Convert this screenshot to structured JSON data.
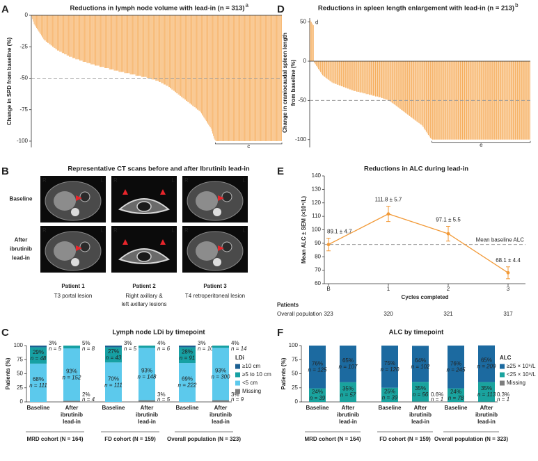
{
  "chart_data": [
    {
      "panel": "A",
      "type": "waterfall",
      "title": "Reductions in lymph node volume with lead-in (n = 313)",
      "title_note": "a",
      "y_label": "Change in SPD from baseline (%)",
      "ylim": [
        -105,
        0
      ],
      "yticks": [
        -100,
        -75,
        -50,
        -25,
        0
      ],
      "ref_line": -50,
      "bracket_label": "c",
      "color": "#f6ad5c",
      "values": [
        -1,
        -3,
        -5,
        -7,
        -8,
        -9,
        -10,
        -11,
        -12,
        -13,
        -14,
        -15,
        -16,
        -17,
        -18,
        -19,
        -20,
        -20,
        -21,
        -21,
        -22,
        -22,
        -23,
        -23,
        -24,
        -24,
        -25,
        -25,
        -26,
        -26,
        -27,
        -27,
        -28,
        -28,
        -28,
        -29,
        -29,
        -29,
        -30,
        -30,
        -30,
        -31,
        -31,
        -31,
        -32,
        -32,
        -32,
        -33,
        -33,
        -33,
        -33,
        -34,
        -34,
        -34,
        -34,
        -35,
        -35,
        -35,
        -35,
        -35,
        -36,
        -36,
        -36,
        -36,
        -37,
        -37,
        -37,
        -37,
        -37,
        -38,
        -38,
        -38,
        -38,
        -38,
        -39,
        -39,
        -39,
        -39,
        -39,
        -40,
        -40,
        -40,
        -40,
        -40,
        -40,
        -41,
        -41,
        -41,
        -41,
        -41,
        -41,
        -42,
        -42,
        -42,
        -42,
        -42,
        -42,
        -43,
        -43,
        -43,
        -43,
        -43,
        -43,
        -44,
        -44,
        -44,
        -44,
        -44,
        -44,
        -45,
        -45,
        -45,
        -45,
        -45,
        -45,
        -45,
        -46,
        -46,
        -46,
        -46,
        -46,
        -46,
        -46,
        -47,
        -47,
        -47,
        -47,
        -47,
        -47,
        -47,
        -48,
        -48,
        -48,
        -48,
        -48,
        -48,
        -48,
        -49,
        -49,
        -49,
        -49,
        -49,
        -49,
        -49,
        -50,
        -50,
        -50,
        -50,
        -50,
        -50,
        -51,
        -51,
        -51,
        -51,
        -51,
        -52,
        -52,
        -52,
        -52,
        -53,
        -53,
        -53,
        -54,
        -54,
        -54,
        -55,
        -55,
        -55,
        -56,
        -56,
        -56,
        -57,
        -57,
        -58,
        -58,
        -59,
        -59,
        -60,
        -60,
        -61,
        -61,
        -62,
        -62,
        -63,
        -63,
        -64,
        -64,
        -65,
        -65,
        -66,
        -66,
        -67,
        -67,
        -68,
        -68,
        -69,
        -69,
        -70,
        -70,
        -71,
        -71,
        -72,
        -72,
        -73,
        -73,
        -74,
        -74,
        -75,
        -75,
        -76,
        -76,
        -77,
        -78,
        -79,
        -80,
        -81,
        -82,
        -83,
        -84,
        -85,
        -86,
        -87,
        -88,
        -89,
        -90,
        -92,
        -94,
        -96,
        -98,
        -99,
        -100,
        -100,
        -100,
        -100,
        -100,
        -100,
        -100,
        -100,
        -100,
        -100,
        -100,
        -100,
        -100,
        -100,
        -100,
        -100,
        -100,
        -100,
        -100,
        -100,
        -100,
        -100,
        -100,
        -100,
        -100,
        -100,
        -100,
        -100,
        -100,
        -100,
        -100,
        -100,
        -100,
        -100,
        -100,
        -100,
        -100,
        -100,
        -100,
        -100,
        -100,
        -100,
        -100,
        -100,
        -100,
        -100,
        -100,
        -100,
        -100,
        -100,
        -100,
        -100,
        -100,
        -100,
        -100,
        -100,
        -100,
        -100,
        -100,
        -100,
        -100,
        -100,
        -100,
        -100,
        -100,
        -100,
        -100,
        -100,
        -100,
        -100,
        -100,
        -100,
        -100,
        -100,
        -100,
        -100,
        -100,
        -100,
        -100,
        -100,
        -100,
        -100,
        -100
      ]
    },
    {
      "panel": "D",
      "type": "waterfall",
      "title": "Reductions in spleen length enlargement with lead-in (n = 213)",
      "title_note": "b",
      "y_label": [
        "Change in craniocaudal spleen length",
        "from baseline (%)"
      ],
      "ylim": [
        -110,
        55
      ],
      "yticks": [
        -100,
        -50,
        0,
        50
      ],
      "ref_line": -50,
      "positive_label": "d",
      "bracket_label": "e",
      "color": "#f6ad5c",
      "values": [
        52,
        50,
        48,
        46,
        -2,
        -4,
        -6,
        -8,
        -10,
        -12,
        -14,
        -16,
        -18,
        -19,
        -20,
        -21,
        -22,
        -23,
        -24,
        -25,
        -26,
        -27,
        -28,
        -28,
        -29,
        -29,
        -30,
        -30,
        -31,
        -31,
        -32,
        -32,
        -33,
        -33,
        -34,
        -34,
        -35,
        -35,
        -36,
        -36,
        -37,
        -37,
        -38,
        -38,
        -38,
        -39,
        -39,
        -39,
        -40,
        -40,
        -40,
        -41,
        -41,
        -41,
        -42,
        -42,
        -42,
        -43,
        -43,
        -43,
        -44,
        -44,
        -44,
        -45,
        -45,
        -45,
        -46,
        -46,
        -46,
        -47,
        -47,
        -48,
        -48,
        -49,
        -49,
        -50,
        -50,
        -51,
        -52,
        -53,
        -54,
        -55,
        -56,
        -57,
        -58,
        -59,
        -60,
        -61,
        -62,
        -63,
        -64,
        -65,
        -66,
        -67,
        -68,
        -69,
        -70,
        -71,
        -72,
        -73,
        -74,
        -75,
        -76,
        -77,
        -78,
        -79,
        -80,
        -81,
        -82,
        -84,
        -86,
        -88,
        -90,
        -92,
        -94,
        -96,
        -98,
        -99,
        -100,
        -100,
        -100,
        -100,
        -100,
        -100,
        -100,
        -100,
        -100,
        -100,
        -100,
        -100,
        -100,
        -100,
        -100,
        -100,
        -100,
        -100,
        -100,
        -100,
        -100,
        -100,
        -100,
        -100,
        -100,
        -100,
        -100,
        -100,
        -100,
        -100,
        -100,
        -100,
        -100,
        -100,
        -100,
        -100,
        -100,
        -100,
        -100,
        -100,
        -100,
        -100,
        -100,
        -100,
        -100,
        -100,
        -100,
        -100,
        -100,
        -100,
        -100,
        -100,
        -100,
        -100,
        -100,
        -100,
        -100,
        -100,
        -100,
        -100,
        -100,
        -100,
        -100,
        -100,
        -100,
        -100,
        -100,
        -100,
        -100,
        -100,
        -100,
        -100,
        -100,
        -100,
        -100,
        -100,
        -100,
        -100,
        -100,
        -100,
        -100,
        -100,
        -100,
        -100,
        -100,
        -100,
        -100,
        -100,
        -100,
        -100,
        -100,
        -100,
        -100,
        -100,
        -100
      ]
    },
    {
      "panel": "E",
      "type": "line",
      "title": "Reductions in ALC during lead-in",
      "y_label": "Mean ALC ± SEM (×10⁹/L)",
      "x_label": "Cycles completed",
      "categories": [
        "B",
        "1",
        "2",
        "3"
      ],
      "values": [
        89.1,
        111.8,
        97.1,
        68.1
      ],
      "errors": [
        4.7,
        5.7,
        5.5,
        4.4
      ],
      "value_labels": [
        "89.1 ± 4.7",
        "111.8 ± 5.7",
        "97.1 ± 5.5",
        "68.1 ± 4.4"
      ],
      "color": "#f29a38",
      "ylim": [
        60,
        140
      ],
      "yticks": [
        60,
        70,
        80,
        90,
        100,
        110,
        120,
        130,
        140
      ],
      "ref_line": {
        "value": 89.1,
        "label": "Mean baseline ALC"
      },
      "patients": {
        "header": "Patients",
        "row_label": "Overall population",
        "counts": [
          323,
          320,
          321,
          317
        ]
      }
    },
    {
      "panel": "C",
      "type": "stacked_bar",
      "title": "Lymph node LDi by timepoint",
      "y_label": "Patients (%)",
      "ylim": [
        0,
        100
      ],
      "yticks": [
        0,
        25,
        50,
        75,
        100
      ],
      "legend_title": "LDi",
      "groups": [
        {
          "name": "MRD cohort (N = 164)",
          "categories": [
            [
              "Baseline"
            ],
            [
              "After",
              "ibrutinib",
              "lead-in"
            ]
          ]
        },
        {
          "name": "FD cohort (N = 159)",
          "categories": [
            [
              "Baseline"
            ],
            [
              "After",
              "ibrutinib",
              "lead-in"
            ]
          ]
        },
        {
          "name": "Overall population (N = 323)",
          "categories": [
            [
              "Baseline"
            ],
            [
              "After",
              "ibrutinib",
              "lead-in"
            ]
          ]
        }
      ],
      "series": [
        {
          "name": "≥10 cm",
          "color": "#1c5f91",
          "values": [
            3,
            null,
            3,
            null,
            3,
            null
          ],
          "value_labels": [
            "3%",
            null,
            "3%",
            null,
            "3%",
            null
          ],
          "count_labels": [
            "n = 5",
            null,
            "n = 5",
            null,
            "n = 10",
            null
          ]
        },
        {
          "name": "≥5 to 10 cm",
          "color": "#17a0a3",
          "values": [
            29,
            5,
            27,
            4,
            28,
            4
          ],
          "value_labels": [
            "29%",
            "5%",
            "27%",
            "4%",
            "28%",
            "4%"
          ],
          "count_labels": [
            "n = 48",
            "n = 8",
            "n = 43",
            "n = 6",
            "n = 91",
            "n = 14"
          ]
        },
        {
          "name": "<5 cm",
          "color": "#5cc9ec",
          "values": [
            68,
            93,
            70,
            93,
            69,
            93
          ],
          "value_labels": [
            "68%",
            "93%",
            "70%",
            "93%",
            "69%",
            "93%"
          ],
          "count_labels": [
            "n = 111",
            "n = 152",
            "n = 111",
            "n = 148",
            "n = 222",
            "n = 300"
          ]
        },
        {
          "name": "Missing",
          "color": "#7d7d7d",
          "values": [
            null,
            2,
            null,
            3,
            null,
            3
          ],
          "value_labels": [
            null,
            "2%",
            null,
            "3%",
            null,
            "3%"
          ],
          "count_labels": [
            null,
            "n = 4",
            null,
            "n = 5",
            null,
            "n = 9"
          ]
        }
      ]
    },
    {
      "panel": "F",
      "type": "stacked_bar",
      "title": "ALC by timepoint",
      "y_label": "Patients (%)",
      "ylim": [
        0,
        100
      ],
      "yticks": [
        0,
        25,
        50,
        75,
        100
      ],
      "legend_title": "ALC",
      "groups": [
        {
          "name": "MRD cohort (N = 164)",
          "categories": [
            [
              "Baseline"
            ],
            [
              "After",
              "ibrutinib",
              "lead-in"
            ]
          ]
        },
        {
          "name": "FD cohort (N = 159)",
          "categories": [
            [
              "Baseline"
            ],
            [
              "After",
              "ibrutinib",
              "lead-in"
            ]
          ]
        },
        {
          "name": "Overall population (N = 323)",
          "categories": [
            [
              "Baseline"
            ],
            [
              "After",
              "ibrutinib",
              "lead-in"
            ]
          ]
        }
      ],
      "series": [
        {
          "name": "≥25 × 10⁹/L",
          "color": "#1c6aa0",
          "values": [
            76,
            65,
            75,
            64,
            76,
            65
          ],
          "value_labels": [
            "76%",
            "65%",
            "75%",
            "64%",
            "76%",
            "65%"
          ],
          "count_labels": [
            "n = 125",
            "n = 107",
            "n = 120",
            "n = 102",
            "n = 245",
            "n = 209"
          ]
        },
        {
          "name": "<25 × 10⁹/L",
          "color": "#1aa39e",
          "values": [
            24,
            35,
            25,
            35,
            24,
            35
          ],
          "value_labels": [
            "24%",
            "35%",
            "25%",
            "35%",
            "24%",
            "35%"
          ],
          "count_labels": [
            "n = 39",
            "n = 57",
            "n = 39",
            "n = 56",
            "n = 78",
            "n = 113"
          ]
        },
        {
          "name": "Missing",
          "color": "#7d7d7d",
          "values": [
            null,
            null,
            null,
            0.6,
            null,
            0.3
          ],
          "value_labels": [
            null,
            null,
            null,
            "0.6%",
            null,
            "0.3%"
          ],
          "count_labels": [
            null,
            null,
            null,
            "n = 1",
            null,
            "n = 1"
          ]
        }
      ]
    }
  ],
  "panel_b": {
    "panel": "B",
    "title": "Representative CT scans before and after Ibrutinib lead-in",
    "row_labels": [
      [
        "Baseline"
      ],
      [
        "After",
        "ibrutinib",
        "lead-in"
      ]
    ],
    "orientation": [
      "R",
      "L"
    ],
    "patients": [
      {
        "name": "Patient 1",
        "lines": [
          "T3 portal lesion"
        ]
      },
      {
        "name": "Patient 2",
        "lines": [
          "Right axillary &",
          "left axillary lesions"
        ]
      },
      {
        "name": "Patient 3",
        "lines": [
          "T4 retroperitoneal lesion"
        ]
      }
    ]
  }
}
